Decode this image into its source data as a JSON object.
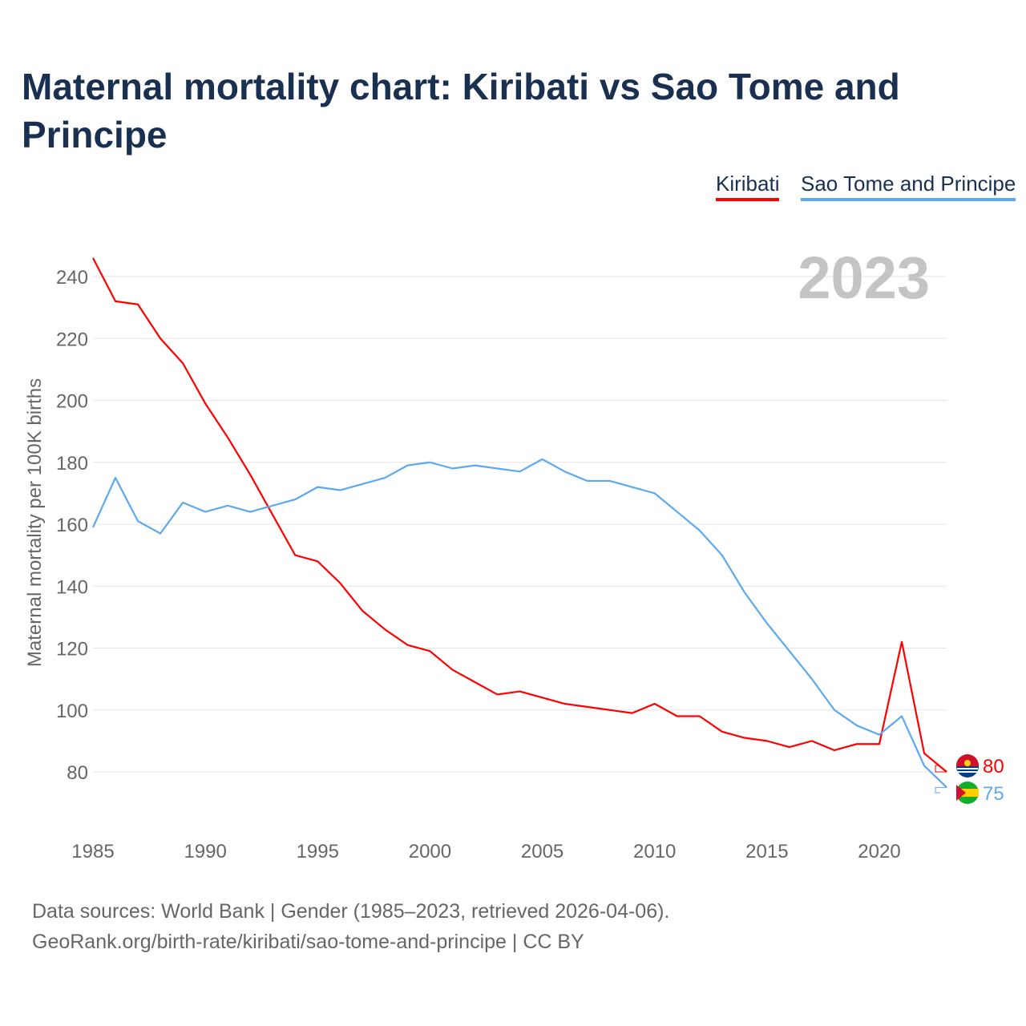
{
  "chart_data": {
    "type": "line",
    "title": "Maternal mortality chart: Kiribati vs Sao Tome and Principe",
    "ylabel": "Maternal mortality per 100K births",
    "xlabel": "",
    "year_label": "2023",
    "ylim": [
      60,
      250
    ],
    "xlim": [
      1985,
      2023
    ],
    "yticks": [
      80,
      100,
      120,
      140,
      160,
      180,
      200,
      220,
      240
    ],
    "xticks": [
      1985,
      1990,
      1995,
      2000,
      2005,
      2010,
      2015,
      2020
    ],
    "grid": true,
    "legend_position": "top-right",
    "x": [
      1985,
      1986,
      1987,
      1988,
      1989,
      1990,
      1991,
      1992,
      1993,
      1994,
      1995,
      1996,
      1997,
      1998,
      1999,
      2000,
      2001,
      2002,
      2003,
      2004,
      2005,
      2006,
      2007,
      2008,
      2009,
      2010,
      2011,
      2012,
      2013,
      2014,
      2015,
      2016,
      2017,
      2018,
      2019,
      2020,
      2021,
      2022,
      2023
    ],
    "series": [
      {
        "name": "Kiribati",
        "color": "#ff0000",
        "end_label": "80",
        "values": [
          246,
          232,
          231,
          220,
          212,
          199,
          188,
          176,
          163,
          150,
          148,
          141,
          132,
          126,
          121,
          119,
          113,
          109,
          105,
          106,
          104,
          102,
          101,
          100,
          99,
          102,
          98,
          98,
          93,
          91,
          90,
          88,
          90,
          87,
          89,
          89,
          122,
          86,
          80
        ]
      },
      {
        "name": "Sao Tome and Principe",
        "color": "#5da9ef",
        "end_label": "75",
        "values": [
          159,
          175,
          161,
          157,
          167,
          164,
          166,
          164,
          166,
          168,
          172,
          171,
          173,
          175,
          179,
          180,
          178,
          179,
          178,
          177,
          181,
          177,
          174,
          174,
          172,
          170,
          164,
          158,
          150,
          138,
          128,
          119,
          110,
          100,
          95,
          92,
          98,
          82,
          75
        ]
      }
    ]
  },
  "footer": {
    "line1": "Data sources: World Bank | Gender (1985–2023, retrieved 2026-04-06).",
    "line2": "GeoRank.org/birth-rate/kiribati/sao-tome-and-principe | CC BY"
  }
}
